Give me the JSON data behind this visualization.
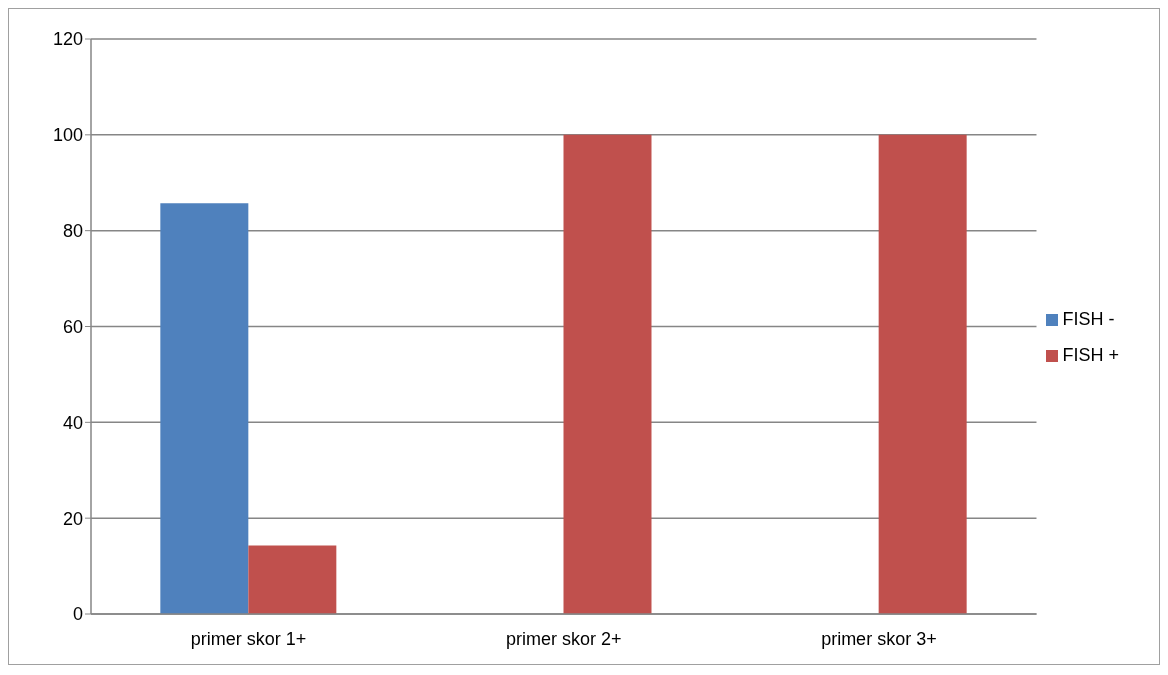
{
  "chart_data": {
    "type": "bar",
    "categories": [
      "primer skor 1+",
      "primer skor 2+",
      "primer skor 3+"
    ],
    "series": [
      {
        "name": "FISH -",
        "color": "#4f81bd",
        "values": [
          85.7,
          0,
          0
        ]
      },
      {
        "name": "FISH +",
        "color": "#c0504d",
        "values": [
          14.3,
          100,
          100
        ]
      }
    ],
    "ylim": [
      0,
      120
    ],
    "yticks": [
      0,
      20,
      40,
      60,
      80,
      100,
      120
    ],
    "grid": "y",
    "legend": "right"
  }
}
